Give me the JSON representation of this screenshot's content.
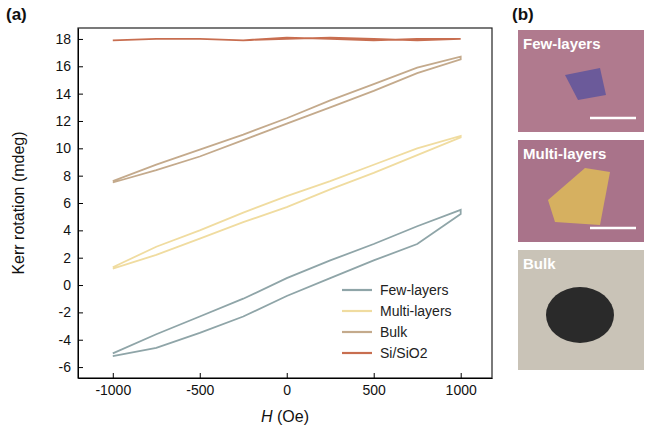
{
  "chart_data": {
    "type": "line",
    "x_label": "H (Oe)",
    "y_label": "Kerr rotation (mdeg)",
    "x": [
      -1000,
      -750,
      -500,
      -250,
      0,
      250,
      500,
      750,
      1000,
      1000,
      750,
      500,
      250,
      0,
      -250,
      -500,
      -750,
      -1000
    ],
    "series": [
      {
        "name": "Few-layers",
        "color": "#8fa5a8",
        "values": [
          -5.2,
          -4.6,
          -3.5,
          -2.3,
          -0.8,
          0.5,
          1.8,
          3.0,
          5.2,
          5.5,
          4.3,
          3.0,
          1.8,
          0.5,
          -1.0,
          -2.3,
          -3.6,
          -5.0
        ]
      },
      {
        "name": "Multi-layers",
        "color": "#f0dca0",
        "values": [
          1.2,
          2.2,
          3.4,
          4.6,
          5.7,
          7.0,
          8.2,
          9.5,
          10.8,
          10.9,
          10.0,
          8.8,
          7.6,
          6.5,
          5.3,
          4.0,
          2.8,
          1.3
        ]
      },
      {
        "name": "Bulk",
        "color": "#c4aa8c",
        "values": [
          7.5,
          8.4,
          9.4,
          10.6,
          11.8,
          13.0,
          14.2,
          15.5,
          16.5,
          16.7,
          15.9,
          14.7,
          13.5,
          12.2,
          11.0,
          9.9,
          8.8,
          7.6
        ]
      },
      {
        "name": "Si/SiO2",
        "color": "#c86e50",
        "values": [
          17.9,
          18.0,
          18.0,
          17.9,
          18.1,
          18.0,
          17.9,
          18.0,
          18.0,
          18.0,
          17.9,
          18.0,
          18.1,
          18.0,
          17.9,
          18.0,
          18.0,
          17.9
        ]
      }
    ],
    "xlim": [
      -1200,
      1180
    ],
    "xticks": [
      -1000,
      -500,
      0,
      500,
      1000
    ],
    "ylim": [
      -6.8,
      18.8
    ],
    "yticks": [
      -6,
      -4,
      -2,
      0,
      2,
      4,
      6,
      8,
      10,
      12,
      14,
      16,
      18
    ],
    "legend": "lower right",
    "grid": false
  },
  "panel_labels": [
    "(a)",
    "(b)"
  ],
  "images": [
    {
      "label": "Few-layers"
    },
    {
      "label": "Multi-layers"
    },
    {
      "label": "Bulk"
    }
  ]
}
